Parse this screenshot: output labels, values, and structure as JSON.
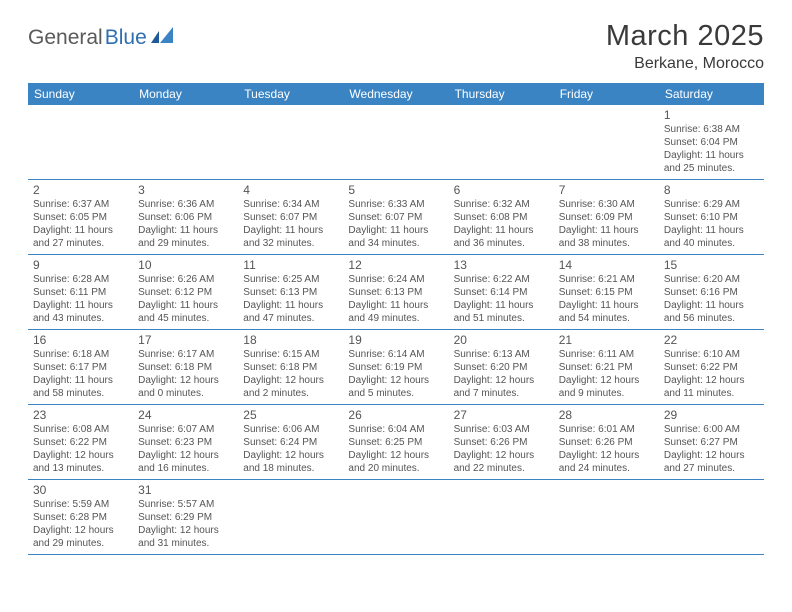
{
  "logo": {
    "part1": "General",
    "part2": "Blue"
  },
  "title": "March 2025",
  "location": "Berkane, Morocco",
  "colors": {
    "header_bg": "#3b84c4",
    "header_text": "#ffffff",
    "border": "#3b84c4",
    "text": "#555555",
    "logo_gray": "#5a5a5a",
    "logo_blue": "#2f6fb0"
  },
  "weekdays": [
    "Sunday",
    "Monday",
    "Tuesday",
    "Wednesday",
    "Thursday",
    "Friday",
    "Saturday"
  ],
  "weeks": [
    [
      null,
      null,
      null,
      null,
      null,
      null,
      {
        "n": "1",
        "sr": "Sunrise: 6:38 AM",
        "ss": "Sunset: 6:04 PM",
        "d1": "Daylight: 11 hours",
        "d2": "and 25 minutes."
      }
    ],
    [
      {
        "n": "2",
        "sr": "Sunrise: 6:37 AM",
        "ss": "Sunset: 6:05 PM",
        "d1": "Daylight: 11 hours",
        "d2": "and 27 minutes."
      },
      {
        "n": "3",
        "sr": "Sunrise: 6:36 AM",
        "ss": "Sunset: 6:06 PM",
        "d1": "Daylight: 11 hours",
        "d2": "and 29 minutes."
      },
      {
        "n": "4",
        "sr": "Sunrise: 6:34 AM",
        "ss": "Sunset: 6:07 PM",
        "d1": "Daylight: 11 hours",
        "d2": "and 32 minutes."
      },
      {
        "n": "5",
        "sr": "Sunrise: 6:33 AM",
        "ss": "Sunset: 6:07 PM",
        "d1": "Daylight: 11 hours",
        "d2": "and 34 minutes."
      },
      {
        "n": "6",
        "sr": "Sunrise: 6:32 AM",
        "ss": "Sunset: 6:08 PM",
        "d1": "Daylight: 11 hours",
        "d2": "and 36 minutes."
      },
      {
        "n": "7",
        "sr": "Sunrise: 6:30 AM",
        "ss": "Sunset: 6:09 PM",
        "d1": "Daylight: 11 hours",
        "d2": "and 38 minutes."
      },
      {
        "n": "8",
        "sr": "Sunrise: 6:29 AM",
        "ss": "Sunset: 6:10 PM",
        "d1": "Daylight: 11 hours",
        "d2": "and 40 minutes."
      }
    ],
    [
      {
        "n": "9",
        "sr": "Sunrise: 6:28 AM",
        "ss": "Sunset: 6:11 PM",
        "d1": "Daylight: 11 hours",
        "d2": "and 43 minutes."
      },
      {
        "n": "10",
        "sr": "Sunrise: 6:26 AM",
        "ss": "Sunset: 6:12 PM",
        "d1": "Daylight: 11 hours",
        "d2": "and 45 minutes."
      },
      {
        "n": "11",
        "sr": "Sunrise: 6:25 AM",
        "ss": "Sunset: 6:13 PM",
        "d1": "Daylight: 11 hours",
        "d2": "and 47 minutes."
      },
      {
        "n": "12",
        "sr": "Sunrise: 6:24 AM",
        "ss": "Sunset: 6:13 PM",
        "d1": "Daylight: 11 hours",
        "d2": "and 49 minutes."
      },
      {
        "n": "13",
        "sr": "Sunrise: 6:22 AM",
        "ss": "Sunset: 6:14 PM",
        "d1": "Daylight: 11 hours",
        "d2": "and 51 minutes."
      },
      {
        "n": "14",
        "sr": "Sunrise: 6:21 AM",
        "ss": "Sunset: 6:15 PM",
        "d1": "Daylight: 11 hours",
        "d2": "and 54 minutes."
      },
      {
        "n": "15",
        "sr": "Sunrise: 6:20 AM",
        "ss": "Sunset: 6:16 PM",
        "d1": "Daylight: 11 hours",
        "d2": "and 56 minutes."
      }
    ],
    [
      {
        "n": "16",
        "sr": "Sunrise: 6:18 AM",
        "ss": "Sunset: 6:17 PM",
        "d1": "Daylight: 11 hours",
        "d2": "and 58 minutes."
      },
      {
        "n": "17",
        "sr": "Sunrise: 6:17 AM",
        "ss": "Sunset: 6:18 PM",
        "d1": "Daylight: 12 hours",
        "d2": "and 0 minutes."
      },
      {
        "n": "18",
        "sr": "Sunrise: 6:15 AM",
        "ss": "Sunset: 6:18 PM",
        "d1": "Daylight: 12 hours",
        "d2": "and 2 minutes."
      },
      {
        "n": "19",
        "sr": "Sunrise: 6:14 AM",
        "ss": "Sunset: 6:19 PM",
        "d1": "Daylight: 12 hours",
        "d2": "and 5 minutes."
      },
      {
        "n": "20",
        "sr": "Sunrise: 6:13 AM",
        "ss": "Sunset: 6:20 PM",
        "d1": "Daylight: 12 hours",
        "d2": "and 7 minutes."
      },
      {
        "n": "21",
        "sr": "Sunrise: 6:11 AM",
        "ss": "Sunset: 6:21 PM",
        "d1": "Daylight: 12 hours",
        "d2": "and 9 minutes."
      },
      {
        "n": "22",
        "sr": "Sunrise: 6:10 AM",
        "ss": "Sunset: 6:22 PM",
        "d1": "Daylight: 12 hours",
        "d2": "and 11 minutes."
      }
    ],
    [
      {
        "n": "23",
        "sr": "Sunrise: 6:08 AM",
        "ss": "Sunset: 6:22 PM",
        "d1": "Daylight: 12 hours",
        "d2": "and 13 minutes."
      },
      {
        "n": "24",
        "sr": "Sunrise: 6:07 AM",
        "ss": "Sunset: 6:23 PM",
        "d1": "Daylight: 12 hours",
        "d2": "and 16 minutes."
      },
      {
        "n": "25",
        "sr": "Sunrise: 6:06 AM",
        "ss": "Sunset: 6:24 PM",
        "d1": "Daylight: 12 hours",
        "d2": "and 18 minutes."
      },
      {
        "n": "26",
        "sr": "Sunrise: 6:04 AM",
        "ss": "Sunset: 6:25 PM",
        "d1": "Daylight: 12 hours",
        "d2": "and 20 minutes."
      },
      {
        "n": "27",
        "sr": "Sunrise: 6:03 AM",
        "ss": "Sunset: 6:26 PM",
        "d1": "Daylight: 12 hours",
        "d2": "and 22 minutes."
      },
      {
        "n": "28",
        "sr": "Sunrise: 6:01 AM",
        "ss": "Sunset: 6:26 PM",
        "d1": "Daylight: 12 hours",
        "d2": "and 24 minutes."
      },
      {
        "n": "29",
        "sr": "Sunrise: 6:00 AM",
        "ss": "Sunset: 6:27 PM",
        "d1": "Daylight: 12 hours",
        "d2": "and 27 minutes."
      }
    ],
    [
      {
        "n": "30",
        "sr": "Sunrise: 5:59 AM",
        "ss": "Sunset: 6:28 PM",
        "d1": "Daylight: 12 hours",
        "d2": "and 29 minutes."
      },
      {
        "n": "31",
        "sr": "Sunrise: 5:57 AM",
        "ss": "Sunset: 6:29 PM",
        "d1": "Daylight: 12 hours",
        "d2": "and 31 minutes."
      },
      null,
      null,
      null,
      null,
      null
    ]
  ]
}
